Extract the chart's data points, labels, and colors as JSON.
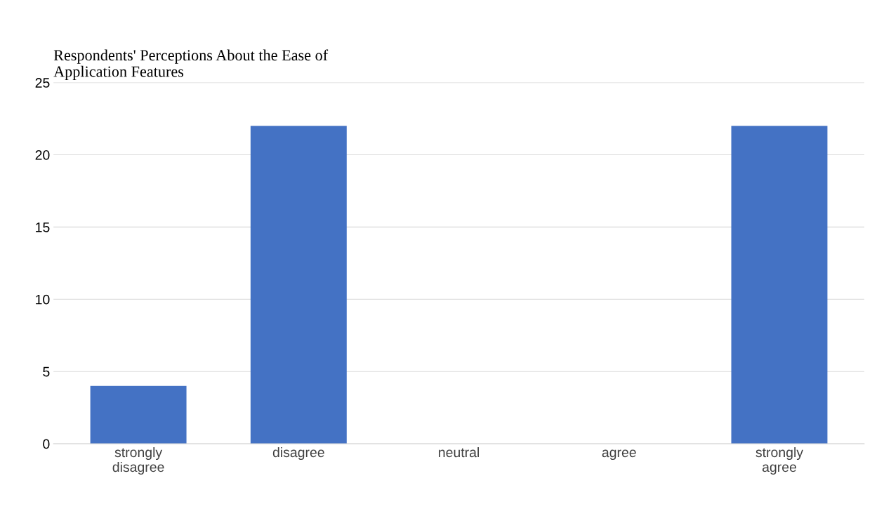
{
  "chart_data": {
    "type": "bar",
    "title": "Respondents' Perceptions About the Ease of\nApplication Features",
    "categories": [
      "strongly\ndisagree",
      "disagree",
      "neutral",
      "agree",
      "strongly\nagree"
    ],
    "values": [
      4,
      22,
      0,
      0,
      22
    ],
    "color": "#4472c4",
    "ylim": [
      0,
      25
    ],
    "yticks": [
      0,
      5,
      10,
      15,
      20,
      25
    ],
    "grid": "y"
  }
}
